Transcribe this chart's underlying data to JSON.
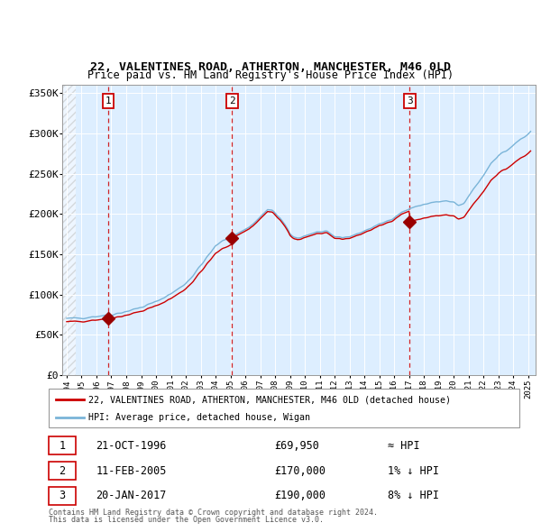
{
  "title1": "22, VALENTINES ROAD, ATHERTON, MANCHESTER, M46 0LD",
  "title2": "Price paid vs. HM Land Registry's House Price Index (HPI)",
  "ylim": [
    0,
    360000
  ],
  "yticks": [
    0,
    50000,
    100000,
    150000,
    200000,
    250000,
    300000,
    350000
  ],
  "ytick_labels": [
    "£0",
    "£50K",
    "£100K",
    "£150K",
    "£200K",
    "£250K",
    "£300K",
    "£350K"
  ],
  "xlim_start": 1993.7,
  "xlim_end": 2025.5,
  "sale_dates": [
    1996.81,
    2005.11,
    2017.05
  ],
  "sale_prices": [
    69950,
    170000,
    190000
  ],
  "sale_labels": [
    "1",
    "2",
    "3"
  ],
  "sale_date_strs": [
    "21-OCT-1996",
    "11-FEB-2005",
    "20-JAN-2017"
  ],
  "sale_price_strs": [
    "£69,950",
    "£170,000",
    "£190,000"
  ],
  "sale_hpi_strs": [
    "≈ HPI",
    "1% ↓ HPI",
    "8% ↓ HPI"
  ],
  "hpi_line_color": "#7ab4d8",
  "sale_line_color": "#cc0000",
  "sale_dot_color": "#990000",
  "legend_label1": "22, VALENTINES ROAD, ATHERTON, MANCHESTER, M46 0LD (detached house)",
  "legend_label2": "HPI: Average price, detached house, Wigan",
  "footer1": "Contains HM Land Registry data © Crown copyright and database right 2024.",
  "footer2": "This data is licensed under the Open Government Licence v3.0.",
  "plot_bg_color": "#ddeeff",
  "vline_color": "#cc0000",
  "hatch_end": 1994.58
}
